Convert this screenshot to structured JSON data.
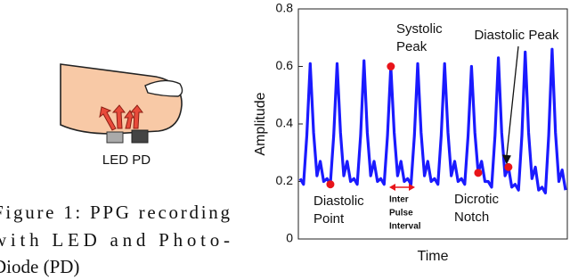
{
  "figure_left": {
    "label": "LED PD",
    "caption_lines": [
      "Figure 1: PPG recording",
      "with LED and Photo-",
      "Diode (PD)"
    ]
  },
  "chart_data": {
    "type": "line",
    "xlabel": "Time",
    "ylabel": "Amplitude",
    "xlim": [
      0,
      79
    ],
    "ylim": [
      0,
      0.8
    ],
    "yticks": [
      0,
      0.2,
      0.4,
      0.6,
      0.8
    ],
    "series": [
      {
        "color": "#1a1aff",
        "values": [
          0.21,
          0.19,
          0.36,
          0.61,
          0.37,
          0.22,
          0.27,
          0.2,
          0.21,
          0.19,
          0.36,
          0.61,
          0.37,
          0.22,
          0.27,
          0.2,
          0.21,
          0.19,
          0.36,
          0.62,
          0.37,
          0.22,
          0.27,
          0.2,
          0.21,
          0.19,
          0.36,
          0.6,
          0.37,
          0.22,
          0.27,
          0.2,
          0.21,
          0.19,
          0.36,
          0.61,
          0.37,
          0.22,
          0.27,
          0.2,
          0.21,
          0.19,
          0.36,
          0.61,
          0.37,
          0.22,
          0.27,
          0.2,
          0.21,
          0.19,
          0.36,
          0.6,
          0.37,
          0.23,
          0.27,
          0.2,
          0.2,
          0.18,
          0.36,
          0.63,
          0.37,
          0.22,
          0.25,
          0.18,
          0.19,
          0.17,
          0.36,
          0.65,
          0.37,
          0.21,
          0.25,
          0.17,
          0.18,
          0.16,
          0.36,
          0.66,
          0.37,
          0.2,
          0.24,
          0.17
        ]
      }
    ],
    "annotations": [
      {
        "lines": [
          "Diastolic",
          "Point"
        ],
        "x": 9,
        "y": 0.19
      },
      {
        "lines": [
          "Systolic",
          "Peak"
        ],
        "x": 27,
        "y": 0.6
      },
      {
        "lines": [
          "Dicrotic",
          "Notch"
        ],
        "x": 53,
        "y": 0.23
      },
      {
        "lines": [
          "Diastolic Peak"
        ],
        "x": 62,
        "y": 0.25
      }
    ],
    "interval_label": [
      "Inter",
      "Pulse",
      "Interval"
    ]
  }
}
